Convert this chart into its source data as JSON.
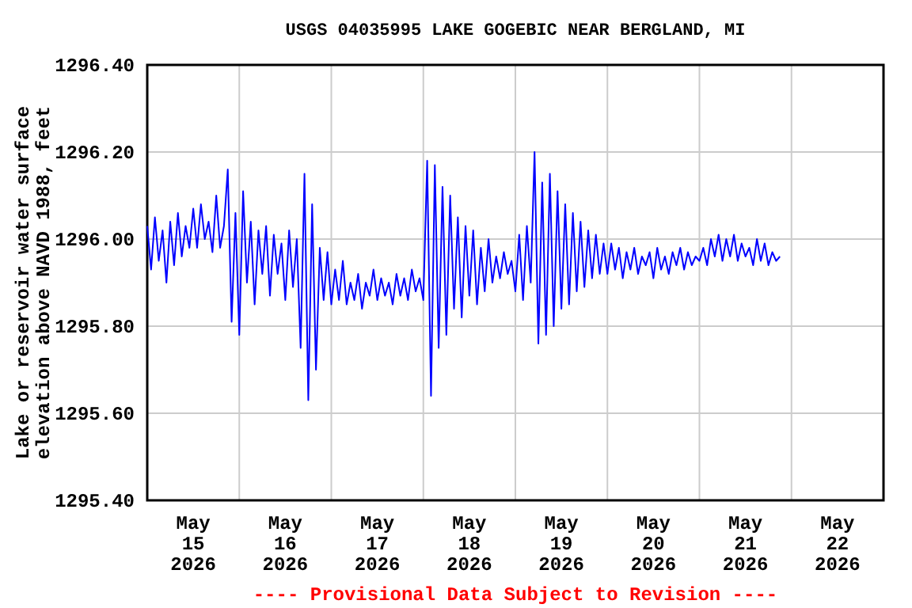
{
  "chart_data": {
    "type": "line",
    "title": "USGS 04035995 LAKE GOGEBIC NEAR BERGLAND, MI",
    "ylabel": "Lake or reservoir water surface\nelevation above NAVD 1988, feet",
    "annotations": [
      "---- Provisional Data Subject to Revision ----"
    ],
    "xlim": [
      "2026-05-15T00:00",
      "2026-05-23T00:00"
    ],
    "xticks": [
      {
        "value": "2026-05-15T00:00",
        "label": null
      },
      {
        "value": "2026-05-15T12:00",
        "label": "May\n15\n2026"
      },
      {
        "value": "2026-05-16T00:00",
        "label": null
      },
      {
        "value": "2026-05-16T12:00",
        "label": "May\n16\n2026"
      },
      {
        "value": "2026-05-17T00:00",
        "label": null
      },
      {
        "value": "2026-05-17T12:00",
        "label": "May\n17\n2026"
      },
      {
        "value": "2026-05-18T00:00",
        "label": null
      },
      {
        "value": "2026-05-18T12:00",
        "label": "May\n18\n2026"
      },
      {
        "value": "2026-05-19T00:00",
        "label": null
      },
      {
        "value": "2026-05-19T12:00",
        "label": "May\n19\n2026"
      },
      {
        "value": "2026-05-20T00:00",
        "label": null
      },
      {
        "value": "2026-05-20T12:00",
        "label": "May\n20\n2026"
      },
      {
        "value": "2026-05-21T00:00",
        "label": null
      },
      {
        "value": "2026-05-21T12:00",
        "label": "May\n21\n2026"
      },
      {
        "value": "2026-05-22T00:00",
        "label": null
      },
      {
        "value": "2026-05-22T12:00",
        "label": "May\n22\n2026"
      },
      {
        "value": "2026-05-23T00:00",
        "label": null
      }
    ],
    "ylim": [
      1295.4,
      1296.4
    ],
    "yticks": [
      {
        "value": 1295.4,
        "label": "1295.40"
      },
      {
        "value": 1295.6,
        "label": "1295.60"
      },
      {
        "value": 1295.8,
        "label": "1295.80"
      },
      {
        "value": 1296.0,
        "label": "1296.00"
      },
      {
        "value": 1296.2,
        "label": "1296.20"
      },
      {
        "value": 1296.4,
        "label": "1296.40"
      }
    ],
    "grid": true,
    "line_style": "solid",
    "marker": "none",
    "series": [
      {
        "color": "#0000ff",
        "x": [
          "2026-05-15T00:00",
          "2026-05-15T01:00",
          "2026-05-15T02:00",
          "2026-05-15T03:00",
          "2026-05-15T04:00",
          "2026-05-15T05:00",
          "2026-05-15T06:00",
          "2026-05-15T07:00",
          "2026-05-15T08:00",
          "2026-05-15T09:00",
          "2026-05-15T10:00",
          "2026-05-15T11:00",
          "2026-05-15T12:00",
          "2026-05-15T13:00",
          "2026-05-15T14:00",
          "2026-05-15T15:00",
          "2026-05-15T16:00",
          "2026-05-15T17:00",
          "2026-05-15T18:00",
          "2026-05-15T19:00",
          "2026-05-15T20:00",
          "2026-05-15T21:00",
          "2026-05-15T22:00",
          "2026-05-15T23:00",
          "2026-05-16T00:00",
          "2026-05-16T01:00",
          "2026-05-16T02:00",
          "2026-05-16T03:00",
          "2026-05-16T04:00",
          "2026-05-16T05:00",
          "2026-05-16T06:00",
          "2026-05-16T07:00",
          "2026-05-16T08:00",
          "2026-05-16T09:00",
          "2026-05-16T10:00",
          "2026-05-16T11:00",
          "2026-05-16T12:00",
          "2026-05-16T13:00",
          "2026-05-16T14:00",
          "2026-05-16T15:00",
          "2026-05-16T16:00",
          "2026-05-16T17:00",
          "2026-05-16T18:00",
          "2026-05-16T19:00",
          "2026-05-16T20:00",
          "2026-05-16T21:00",
          "2026-05-16T22:00",
          "2026-05-16T23:00",
          "2026-05-17T00:00",
          "2026-05-17T01:00",
          "2026-05-17T02:00",
          "2026-05-17T03:00",
          "2026-05-17T04:00",
          "2026-05-17T05:00",
          "2026-05-17T06:00",
          "2026-05-17T07:00",
          "2026-05-17T08:00",
          "2026-05-17T09:00",
          "2026-05-17T10:00",
          "2026-05-17T11:00",
          "2026-05-17T12:00",
          "2026-05-17T13:00",
          "2026-05-17T14:00",
          "2026-05-17T15:00",
          "2026-05-17T16:00",
          "2026-05-17T17:00",
          "2026-05-17T18:00",
          "2026-05-17T19:00",
          "2026-05-17T20:00",
          "2026-05-17T21:00",
          "2026-05-17T22:00",
          "2026-05-17T23:00",
          "2026-05-18T00:00",
          "2026-05-18T01:00",
          "2026-05-18T02:00",
          "2026-05-18T03:00",
          "2026-05-18T04:00",
          "2026-05-18T05:00",
          "2026-05-18T06:00",
          "2026-05-18T07:00",
          "2026-05-18T08:00",
          "2026-05-18T09:00",
          "2026-05-18T10:00",
          "2026-05-18T11:00",
          "2026-05-18T12:00",
          "2026-05-18T13:00",
          "2026-05-18T14:00",
          "2026-05-18T15:00",
          "2026-05-18T16:00",
          "2026-05-18T17:00",
          "2026-05-18T18:00",
          "2026-05-18T19:00",
          "2026-05-18T20:00",
          "2026-05-18T21:00",
          "2026-05-18T22:00",
          "2026-05-18T23:00",
          "2026-05-19T00:00",
          "2026-05-19T01:00",
          "2026-05-19T02:00",
          "2026-05-19T03:00",
          "2026-05-19T04:00",
          "2026-05-19T05:00",
          "2026-05-19T06:00",
          "2026-05-19T07:00",
          "2026-05-19T08:00",
          "2026-05-19T09:00",
          "2026-05-19T10:00",
          "2026-05-19T11:00",
          "2026-05-19T12:00",
          "2026-05-19T13:00",
          "2026-05-19T14:00",
          "2026-05-19T15:00",
          "2026-05-19T16:00",
          "2026-05-19T17:00",
          "2026-05-19T18:00",
          "2026-05-19T19:00",
          "2026-05-19T20:00",
          "2026-05-19T21:00",
          "2026-05-19T22:00",
          "2026-05-19T23:00",
          "2026-05-20T00:00",
          "2026-05-20T01:00",
          "2026-05-20T02:00",
          "2026-05-20T03:00",
          "2026-05-20T04:00",
          "2026-05-20T05:00",
          "2026-05-20T06:00",
          "2026-05-20T07:00",
          "2026-05-20T08:00",
          "2026-05-20T09:00",
          "2026-05-20T10:00",
          "2026-05-20T11:00",
          "2026-05-20T12:00",
          "2026-05-20T13:00",
          "2026-05-20T14:00",
          "2026-05-20T15:00",
          "2026-05-20T16:00",
          "2026-05-20T17:00",
          "2026-05-20T18:00",
          "2026-05-20T19:00",
          "2026-05-20T20:00",
          "2026-05-20T21:00",
          "2026-05-20T22:00",
          "2026-05-20T23:00",
          "2026-05-21T00:00",
          "2026-05-21T01:00",
          "2026-05-21T02:00",
          "2026-05-21T03:00",
          "2026-05-21T04:00",
          "2026-05-21T05:00",
          "2026-05-21T06:00",
          "2026-05-21T07:00",
          "2026-05-21T08:00",
          "2026-05-21T09:00",
          "2026-05-21T10:00",
          "2026-05-21T11:00",
          "2026-05-21T12:00",
          "2026-05-21T13:00",
          "2026-05-21T14:00",
          "2026-05-21T15:00",
          "2026-05-21T16:00",
          "2026-05-21T17:00",
          "2026-05-21T18:00",
          "2026-05-21T19:00",
          "2026-05-21T20:00",
          "2026-05-21T21:00"
        ],
        "values": [
          1296.03,
          1295.93,
          1296.05,
          1295.95,
          1296.02,
          1295.9,
          1296.04,
          1295.94,
          1296.06,
          1295.96,
          1296.03,
          1295.98,
          1296.07,
          1295.98,
          1296.08,
          1296.0,
          1296.04,
          1295.97,
          1296.1,
          1295.98,
          1296.03,
          1296.16,
          1295.81,
          1296.06,
          1295.78,
          1296.11,
          1295.9,
          1296.04,
          1295.85,
          1296.02,
          1295.92,
          1296.03,
          1295.87,
          1296.01,
          1295.92,
          1295.99,
          1295.86,
          1296.02,
          1295.89,
          1296.0,
          1295.75,
          1296.15,
          1295.63,
          1296.08,
          1295.7,
          1295.98,
          1295.86,
          1295.97,
          1295.85,
          1295.93,
          1295.86,
          1295.95,
          1295.85,
          1295.9,
          1295.86,
          1295.92,
          1295.84,
          1295.9,
          1295.87,
          1295.93,
          1295.86,
          1295.91,
          1295.87,
          1295.9,
          1295.85,
          1295.92,
          1295.87,
          1295.91,
          1295.86,
          1295.93,
          1295.88,
          1295.91,
          1295.86,
          1296.18,
          1295.64,
          1296.17,
          1295.75,
          1296.12,
          1295.78,
          1296.1,
          1295.84,
          1296.05,
          1295.82,
          1296.03,
          1295.87,
          1296.02,
          1295.85,
          1295.98,
          1295.88,
          1296.0,
          1295.9,
          1295.96,
          1295.91,
          1295.97,
          1295.92,
          1295.95,
          1295.88,
          1296.01,
          1295.86,
          1296.03,
          1295.9,
          1296.2,
          1295.76,
          1296.13,
          1295.78,
          1296.15,
          1295.8,
          1296.11,
          1295.84,
          1296.08,
          1295.85,
          1296.06,
          1295.88,
          1296.04,
          1295.89,
          1296.02,
          1295.91,
          1296.01,
          1295.92,
          1295.99,
          1295.92,
          1295.99,
          1295.93,
          1295.98,
          1295.91,
          1295.97,
          1295.93,
          1295.98,
          1295.92,
          1295.96,
          1295.94,
          1295.97,
          1295.91,
          1295.98,
          1295.93,
          1295.96,
          1295.92,
          1295.97,
          1295.94,
          1295.98,
          1295.93,
          1295.97,
          1295.94,
          1295.96,
          1295.95,
          1295.98,
          1295.94,
          1296.0,
          1295.96,
          1296.01,
          1295.95,
          1296.0,
          1295.96,
          1296.01,
          1295.95,
          1295.99,
          1295.96,
          1295.98,
          1295.94,
          1296.0,
          1295.95,
          1295.99,
          1295.94,
          1295.97,
          1295.95,
          1295.96
        ]
      }
    ]
  }
}
